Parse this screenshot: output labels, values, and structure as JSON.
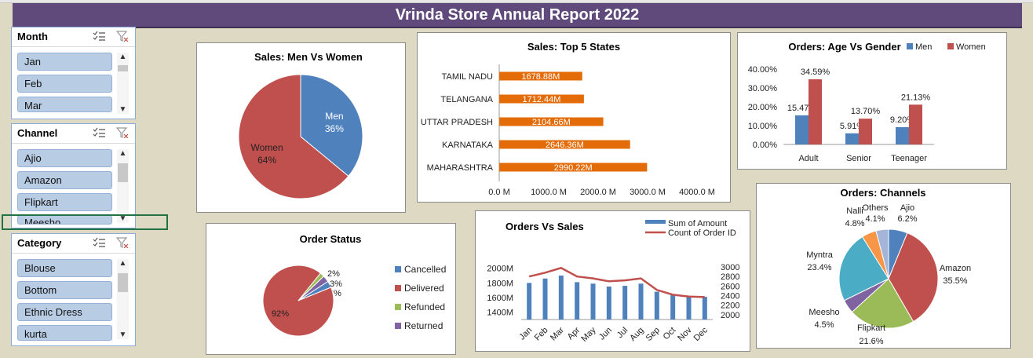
{
  "header": {
    "title": "Vrinda Store Annual Report 2022"
  },
  "slicers": [
    {
      "title": "Month",
      "items": [
        "Jan",
        "Feb",
        "Mar"
      ]
    },
    {
      "title": "Channel",
      "items": [
        "Ajio",
        "Amazon",
        "Flipkart",
        "Meesho"
      ]
    },
    {
      "title": "Category",
      "items": [
        "Blouse",
        "Bottom",
        "Ethnic Dress",
        "kurta"
      ]
    }
  ],
  "icons": {
    "multi_select": "multi-select-icon",
    "clear_filter": "clear-filter-icon",
    "scroll_up": "scroll-up-icon",
    "scroll_down": "scroll-down-icon"
  },
  "chart_data": [
    {
      "id": "men-women",
      "type": "pie",
      "title": "Sales: Men Vs Women",
      "slices": [
        {
          "label": "Men",
          "pct_label": "36%",
          "value": 36,
          "color": "#4f81bd"
        },
        {
          "label": "Women",
          "pct_label": "64%",
          "value": 64,
          "color": "#c0504d"
        }
      ]
    },
    {
      "id": "top-states",
      "type": "bar",
      "orientation": "horizontal",
      "title": "Sales: Top 5 States",
      "categories": [
        "TAMIL NADU",
        "TELANGANA",
        "UTTAR PRADESH",
        "KARNATAKA",
        "MAHARASHTRA"
      ],
      "values": [
        1678.88,
        1712.44,
        2104.66,
        2646.36,
        2990.22
      ],
      "value_labels": [
        "1678.88M",
        "1712.44M",
        "2104.66M",
        "2646.36M",
        "2990.22M"
      ],
      "xticks": [
        "0.0 M",
        "1000.0 M",
        "2000.0 M",
        "3000.0 M",
        "4000.0 M"
      ],
      "xlim": [
        0,
        4000
      ],
      "color": "#e36c09"
    },
    {
      "id": "age-gender",
      "type": "bar",
      "title": "Orders: Age Vs Gender",
      "categories": [
        "Adult",
        "Senior",
        "Teenager"
      ],
      "series": [
        {
          "name": "Men",
          "values": [
            15.47,
            5.91,
            9.2
          ],
          "labels": [
            "15.47%",
            "5.91%",
            "9.20%"
          ],
          "color": "#4f81bd"
        },
        {
          "name": "Women",
          "values": [
            34.59,
            13.7,
            21.13
          ],
          "labels": [
            "34.59%",
            "13.70%",
            "21.13%"
          ],
          "color": "#c0504d"
        }
      ],
      "yticks": [
        "0.00%",
        "10.00%",
        "20.00%",
        "30.00%",
        "40.00%"
      ],
      "ylim": [
        0,
        40
      ],
      "legend": "top-right"
    },
    {
      "id": "order-status",
      "type": "pie",
      "title": "Order Status",
      "slices": [
        {
          "label": "Cancelled",
          "pct_label": "3%",
          "value": 3,
          "color": "#4f81bd"
        },
        {
          "label": "Delivered",
          "pct_label": "92%",
          "value": 92,
          "color": "#c0504d"
        },
        {
          "label": "Refunded",
          "pct_label": "2%",
          "value": 2,
          "color": "#9bbb59"
        },
        {
          "label": "Returned",
          "pct_label": "3%",
          "value": 3,
          "color": "#8064a2"
        }
      ],
      "legend": "right"
    },
    {
      "id": "orders-sales",
      "type": "bar",
      "title": "Orders Vs Sales",
      "categories": [
        "Jan",
        "Feb",
        "Mar",
        "Apr",
        "May",
        "Jun",
        "Jul",
        "Aug",
        "Sep",
        "Oct",
        "Nov",
        "Dec"
      ],
      "series": [
        {
          "name": "Sum of Amount",
          "axis": "left",
          "kind": "bar",
          "values": [
            1800,
            1860,
            1900,
            1810,
            1790,
            1750,
            1760,
            1790,
            1680,
            1640,
            1620,
            1610
          ],
          "color": "#4f81bd"
        },
        {
          "name": "Count of Order ID",
          "axis": "right",
          "kind": "line",
          "values": [
            2800,
            2880,
            2980,
            2800,
            2760,
            2700,
            2720,
            2760,
            2520,
            2420,
            2380,
            2370
          ],
          "color": "#c0504d"
        }
      ],
      "left_ticks": [
        "1400M",
        "1600M",
        "1800M",
        "2000M"
      ],
      "left_lim": [
        1300,
        2050
      ],
      "right_ticks": [
        "2000",
        "2200",
        "2400",
        "2600",
        "2800",
        "3000"
      ],
      "right_lim": [
        1900,
        3050
      ],
      "legend": "top-right"
    },
    {
      "id": "channels",
      "type": "pie",
      "title": "Orders: Channels",
      "slices": [
        {
          "label": "Ajio",
          "pct_label": "6.2%",
          "value": 6.2,
          "color": "#4f81bd"
        },
        {
          "label": "Amazon",
          "pct_label": "35.5%",
          "value": 35.5,
          "color": "#c0504d"
        },
        {
          "label": "Flipkart",
          "pct_label": "21.6%",
          "value": 21.6,
          "color": "#9bbb59"
        },
        {
          "label": "Meesho",
          "pct_label": "4.5%",
          "value": 4.5,
          "color": "#8064a2"
        },
        {
          "label": "Myntra",
          "pct_label": "23.4%",
          "value": 23.4,
          "color": "#4bacc6"
        },
        {
          "label": "Nalli",
          "pct_label": "4.8%",
          "value": 4.8,
          "color": "#f79646"
        },
        {
          "label": "Others",
          "pct_label": "4.1%",
          "value": 4.1,
          "color": "#a5b5d9"
        }
      ]
    }
  ]
}
